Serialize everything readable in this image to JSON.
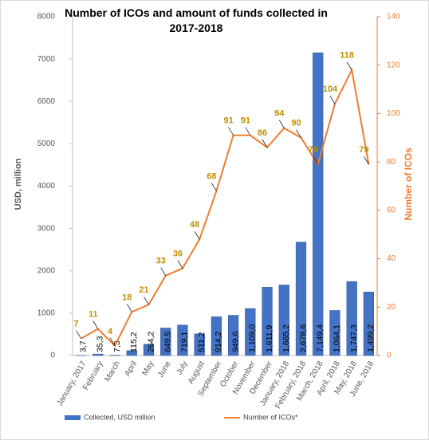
{
  "chart_data": {
    "type": "bar-line",
    "title": "Number of ICOs and amount of funds collected in 2017-2018",
    "ylabel": "USD, million",
    "y2label": "Number of ICOs",
    "categories": [
      "January, 2017",
      "February",
      "March",
      "April",
      "May",
      "June",
      "July",
      "August",
      "September",
      "October",
      "November",
      "December",
      "January, 2018",
      "February, 2018",
      "March, 2018",
      "April, 2018",
      "May, 2018",
      "June, 2018"
    ],
    "series": [
      {
        "name": "Collected, USD million",
        "type": "bar",
        "color": "#4472c4",
        "values": [
          3.7,
          35.3,
          7.3,
          115.2,
          264.2,
          649.5,
          719.1,
          511.2,
          914.2,
          949.6,
          1109.0,
          1611.9,
          1665.2,
          2678.6,
          7149.4,
          1064.1,
          1747.3,
          1499.2
        ],
        "value_labels": [
          "3,7",
          "35,3",
          "7,3",
          "115,2",
          "264,2",
          "649,5",
          "719,1",
          "511,2",
          "914,2",
          "949,6",
          "1,109,0",
          "1,611,9",
          "1,665,2",
          "2,678,6",
          "7,149,4",
          "1,064,1",
          "1,747,3",
          "1,499,2"
        ]
      },
      {
        "name": "Number of ICOs*",
        "type": "line",
        "color": "#ed7d31",
        "axis": "y2",
        "label_color": "#bf9000",
        "values": [
          7,
          11,
          4,
          18,
          21,
          33,
          36,
          48,
          68,
          91,
          91,
          86,
          94,
          90,
          79,
          104,
          118,
          79
        ]
      }
    ],
    "ylim": [
      0,
      8000
    ],
    "yticks": [
      0,
      1000,
      2000,
      3000,
      4000,
      5000,
      6000,
      7000,
      8000
    ],
    "y2lim": [
      0,
      140
    ],
    "y2ticks": [
      0,
      20,
      40,
      60,
      80,
      100,
      120,
      140
    ],
    "grid": false,
    "legend": "bottom"
  }
}
